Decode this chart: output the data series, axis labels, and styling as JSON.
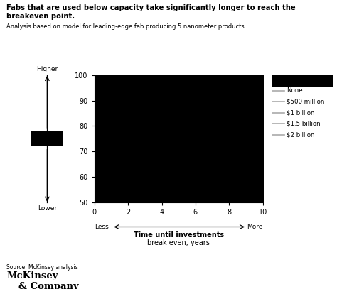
{
  "title_line1": "Fabs that are used below capacity take significantly longer to reach the",
  "title_line2": "breakeven point.",
  "subtitle": "Analysis based on model for leading-edge fab producing 5 nanometer products",
  "source": "Source: McKinsey analysis",
  "xlabel_main": "Time until investments",
  "xlabel_sub": "break even, years",
  "xlabel_left": "Less",
  "xlabel_right": "More",
  "ylabel_top": "Higher",
  "ylabel_bottom": "Lower",
  "xlim": [
    0,
    10
  ],
  "ylim": [
    50,
    100
  ],
  "xticks": [
    0,
    2,
    4,
    6,
    8,
    10
  ],
  "yticks": [
    50,
    60,
    70,
    80,
    90,
    100
  ],
  "plot_bg_color": "#000000",
  "fig_bg_color": "#ffffff",
  "legend_entries": [
    "None",
    "$500 million",
    "$1 billion",
    "$1.5 billion",
    "$2 billion"
  ],
  "legend_line_color": "#aaaaaa",
  "left_box_color": "#000000"
}
